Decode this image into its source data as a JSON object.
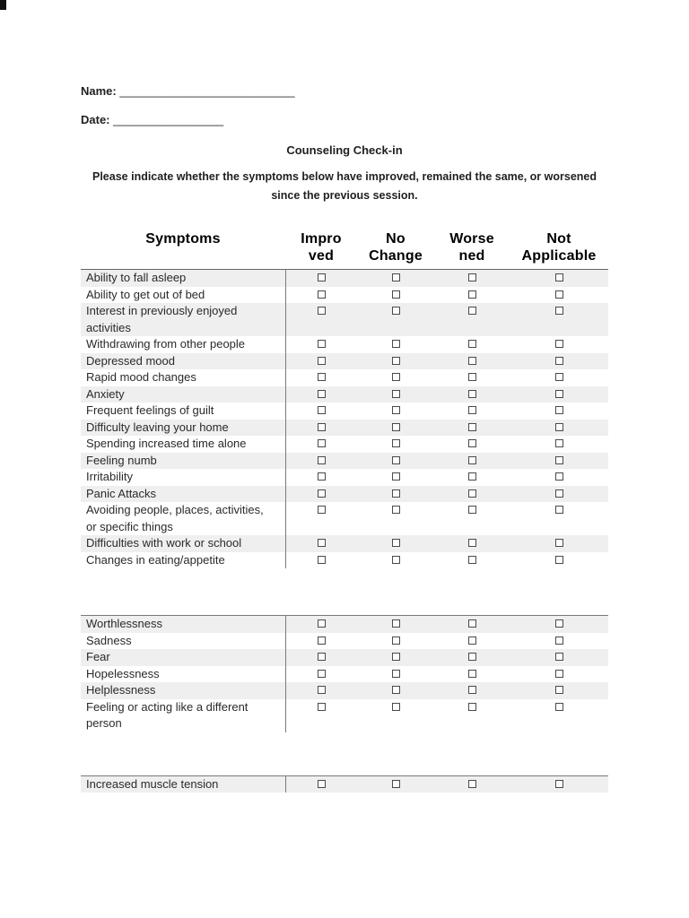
{
  "page": {
    "name_label": "Name:",
    "name_blank": "___________________________",
    "date_label": "Date:",
    "date_blank": "_________________",
    "title": "Counseling Check-in",
    "instructions": "Please indicate whether the symptoms below have improved, remained the same, or worsened since the previous session."
  },
  "table": {
    "symptoms_header": "Symptoms",
    "option_headers": [
      "Impro\nved",
      "No\nChange",
      "Worse\nned",
      "Not\nApplicable"
    ],
    "option_keys": [
      "improved",
      "no-change",
      "worsened",
      "not-applicable"
    ],
    "checkbox_state": "unchecked",
    "sections": [
      {
        "rows": [
          "Ability to fall asleep",
          "Ability to get out of bed",
          "Interest in previously enjoyed activities",
          "Withdrawing from other people",
          "Depressed mood",
          "Rapid mood changes",
          "Anxiety",
          "Frequent feelings of guilt",
          "Difficulty leaving your home",
          "Spending increased time alone",
          "Feeling numb",
          "Irritability",
          "Panic Attacks",
          "Avoiding people, places, activities, or specific things",
          "Difficulties with work or school",
          "Changes in eating/appetite"
        ]
      },
      {
        "rows": [
          "Worthlessness",
          "Sadness",
          "Fear",
          "Hopelessness",
          "Helplessness",
          "Feeling or acting like a different person"
        ]
      },
      {
        "rows": [
          "Increased muscle tension"
        ]
      }
    ]
  },
  "colors": {
    "shaded_row": "#efefef",
    "border": "#7a7a7a",
    "text": "#1f1f1f"
  }
}
